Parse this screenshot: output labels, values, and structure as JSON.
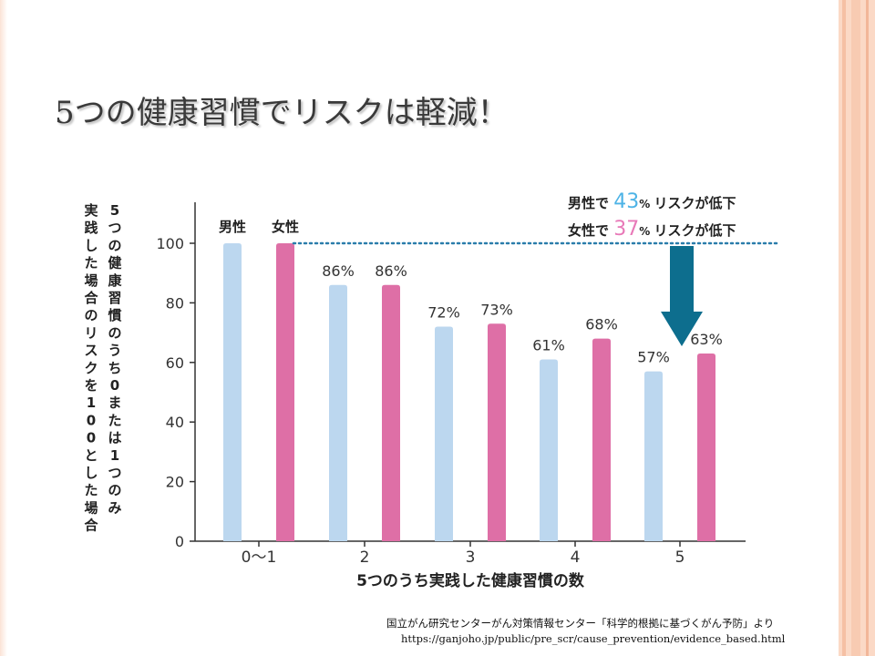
{
  "slide": {
    "title": "5つの健康習慣でリスクは軽減！",
    "source_line1": "国立がん研究センターがん対策情報センター「科学的根拠に基づくがん予防」より",
    "source_line2": "https://ganjoho.jp/public/pre_scr/cause_prevention/evidence_based.html"
  },
  "colors": {
    "male": "#bcd7ef",
    "female": "#de6fa6",
    "arrow": "#0d6e8e",
    "dotted_line": "#2a7dab",
    "male_highlight": "#4db3e6",
    "female_highlight": "#e879b8",
    "background_deco": "#fbd9c6"
  },
  "chart_data": {
    "type": "bar",
    "categories": [
      "0〜1",
      "2",
      "3",
      "4",
      "5"
    ],
    "series": [
      {
        "name": "男性",
        "values": [
          100,
          86,
          72,
          61,
          57
        ]
      },
      {
        "name": "女性",
        "values": [
          100,
          86,
          73,
          68,
          63
        ]
      }
    ],
    "data_labels": {
      "male": [
        "",
        "86%",
        "72%",
        "61%",
        "57%"
      ],
      "female": [
        "",
        "86%",
        "73%",
        "68%",
        "63%"
      ]
    },
    "xlabel": "5つのうち実践した健康習慣の数",
    "ylabel_line1": "5つの健康習慣のうち0または1つのみ",
    "ylabel_line2": "実践した場合のリスクを100とした場合",
    "ylim": [
      0,
      100
    ],
    "yticks": [
      "0",
      "20",
      "40",
      "60",
      "80",
      "100"
    ],
    "legend_position": "top-left",
    "grid": false,
    "reference_line": 100,
    "annotation": {
      "male_prefix": "男性で",
      "male_value": "43",
      "female_prefix": "女性で",
      "female_value": "37",
      "percent": "%",
      "suffix": "リスクが低下"
    }
  }
}
